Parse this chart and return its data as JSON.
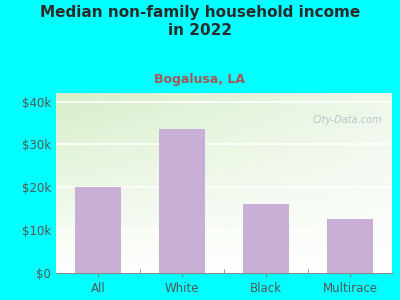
{
  "title": "Median non-family household income\nin 2022",
  "subtitle": "Bogalusa, LA",
  "categories": [
    "All",
    "White",
    "Black",
    "Multirace"
  ],
  "values": [
    20000,
    33500,
    16000,
    12500
  ],
  "bar_color": "#c9aed6",
  "background_color": "#00ffff",
  "plot_bg_top_left": "#d6eec8",
  "plot_bg_top_right": "#eef5ea",
  "plot_bg_bottom": "#ffffff",
  "title_color": "#2a2a2a",
  "subtitle_color": "#aa5555",
  "axis_label_color": "#555555",
  "ytick_label_color": "#555555",
  "yticks": [
    0,
    10000,
    20000,
    30000,
    40000
  ],
  "ytick_labels": [
    "$0",
    "$10k",
    "$20k",
    "$30k",
    "$40k"
  ],
  "ylim": [
    0,
    42000
  ],
  "watermark": "City-Data.com",
  "watermark_color": "#b0bec5"
}
